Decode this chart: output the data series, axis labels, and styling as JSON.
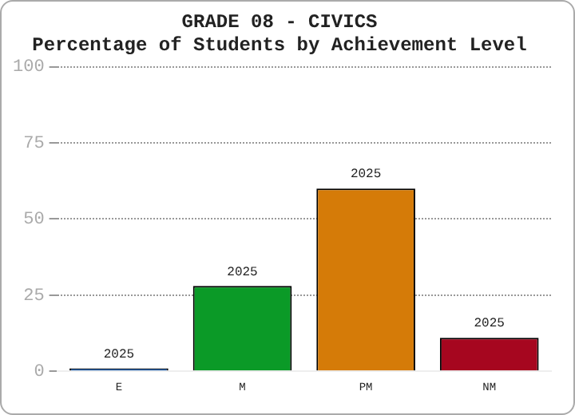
{
  "chart_data": {
    "type": "bar",
    "title": "GRADE 08 - CIVICS",
    "subtitle": "Percentage of Students by Achievement Level",
    "categories": [
      "E",
      "M",
      "PM",
      "NM"
    ],
    "series": [
      {
        "name": "2025",
        "values": [
          1,
          28,
          60,
          11
        ],
        "colors": [
          "#0b4ea2",
          "#0b9a27",
          "#d57b08",
          "#a6061f"
        ]
      }
    ],
    "ylim": [
      0,
      100
    ],
    "yticks": [
      0,
      25,
      50,
      75,
      100
    ],
    "grid": "y",
    "legend": false
  }
}
